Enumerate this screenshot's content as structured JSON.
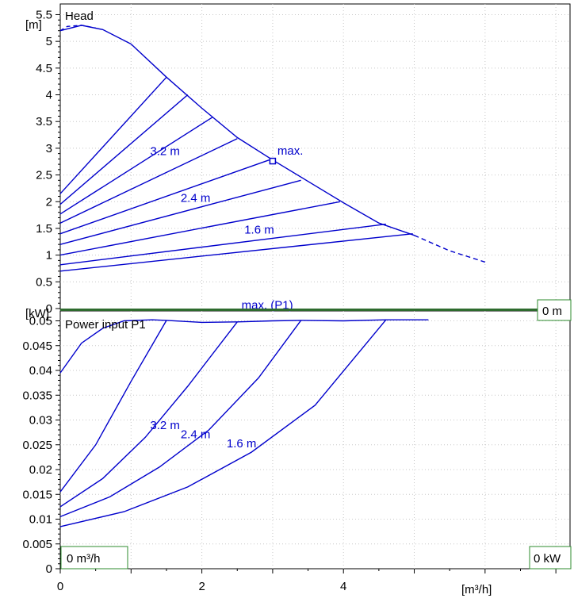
{
  "chart_data": [
    {
      "type": "line",
      "title": "Head",
      "y_unit": "[m]",
      "x_unit": "[m³/h]",
      "xlim": [
        0,
        7.2
      ],
      "ylim": [
        0,
        5.7
      ],
      "x_ticks": [
        "0",
        "2",
        "4"
      ],
      "y_ticks": [
        "0",
        "0.5",
        "1",
        "1.5",
        "2",
        "2.5",
        "3",
        "3.5",
        "4",
        "4.5",
        "5",
        "5.5"
      ],
      "grid": true,
      "line_color": "#0000cc",
      "max_curve": {
        "name": "max.",
        "solid": [
          [
            0,
            5.2
          ],
          [
            0.3,
            5.3
          ],
          [
            0.6,
            5.22
          ],
          [
            1.0,
            4.95
          ],
          [
            1.5,
            4.33
          ],
          [
            2.0,
            3.75
          ],
          [
            2.5,
            3.2
          ],
          [
            3.0,
            2.78
          ],
          [
            3.5,
            2.38
          ],
          [
            4.0,
            1.98
          ],
          [
            4.5,
            1.6
          ],
          [
            5.0,
            1.37
          ]
        ],
        "dashed_start": [
          [
            0,
            5.2
          ],
          [
            0.1,
            5.28
          ],
          [
            0.3,
            5.3
          ],
          [
            0.5,
            5.25
          ]
        ],
        "dashed_end": [
          [
            5.0,
            1.37
          ],
          [
            5.5,
            1.08
          ],
          [
            6.0,
            0.87
          ]
        ]
      },
      "max_point": {
        "x": 3.0,
        "y": 2.76,
        "label": "max."
      },
      "system_curves": [
        {
          "from": [
            0,
            2.15
          ],
          "to": [
            1.5,
            4.33
          ]
        },
        {
          "from": [
            0,
            1.95
          ],
          "to": [
            1.8,
            4.0
          ]
        },
        {
          "from": [
            0,
            1.77
          ],
          "to": [
            2.15,
            3.58
          ]
        },
        {
          "from": [
            0,
            1.6
          ],
          "to": [
            2.5,
            3.18
          ]
        },
        {
          "from": [
            0,
            1.4
          ],
          "to": [
            2.95,
            2.78
          ]
        },
        {
          "from": [
            0,
            1.2
          ],
          "to": [
            3.4,
            2.4
          ]
        },
        {
          "from": [
            0,
            1.0
          ],
          "to": [
            3.95,
            2.0
          ]
        },
        {
          "from": [
            0,
            0.82
          ],
          "to": [
            4.6,
            1.58
          ]
        },
        {
          "from": [
            0,
            0.7
          ],
          "to": [
            4.98,
            1.4
          ]
        }
      ],
      "annotations": [
        {
          "text": "3.2 m",
          "x": 1.27,
          "y": 2.87
        },
        {
          "text": "2.4 m",
          "x": 1.7,
          "y": 2.0
        },
        {
          "text": "1.6 m",
          "x": 2.6,
          "y": 1.4
        }
      ],
      "corner_label": "0 m"
    },
    {
      "type": "line",
      "title": "Power input P1",
      "y_unit": "[kW]",
      "x_unit": "[m³/h]",
      "xlim": [
        0,
        7.2
      ],
      "ylim": [
        0,
        0.052
      ],
      "x_ticks": [
        "0",
        "2",
        "4"
      ],
      "y_ticks": [
        "0",
        "0.005",
        "0.01",
        "0.015",
        "0.02",
        "0.025",
        "0.03",
        "0.035",
        "0.04",
        "0.045",
        "0.05"
      ],
      "grid": true,
      "line_color": "#0000cc",
      "max_curve": {
        "name": "max. (P1)",
        "points": [
          [
            0,
            0.0395
          ],
          [
            0.3,
            0.0455
          ],
          [
            0.6,
            0.0485
          ],
          [
            0.9,
            0.05
          ],
          [
            1.3,
            0.0502
          ],
          [
            1.5,
            0.0501
          ],
          [
            2.0,
            0.0497
          ],
          [
            2.5,
            0.0498
          ],
          [
            3.0,
            0.05
          ],
          [
            3.4,
            0.0501
          ],
          [
            4.0,
            0.05
          ],
          [
            4.6,
            0.0502
          ],
          [
            5.2,
            0.0502
          ]
        ]
      },
      "system_curves": [
        {
          "points": [
            [
              0,
              0.0155
            ],
            [
              0.5,
              0.025
            ],
            [
              1.0,
              0.0378
            ],
            [
              1.5,
              0.0501
            ]
          ]
        },
        {
          "points": [
            [
              0,
              0.0125
            ],
            [
              0.6,
              0.0182
            ],
            [
              1.2,
              0.0265
            ],
            [
              1.8,
              0.0368
            ],
            [
              2.5,
              0.0498
            ]
          ]
        },
        {
          "points": [
            [
              0,
              0.0105
            ],
            [
              0.7,
              0.0145
            ],
            [
              1.4,
              0.0205
            ],
            [
              2.1,
              0.028
            ],
            [
              2.8,
              0.0385
            ],
            [
              3.4,
              0.0501
            ]
          ]
        },
        {
          "points": [
            [
              0,
              0.0085
            ],
            [
              0.9,
              0.0115
            ],
            [
              1.8,
              0.0165
            ],
            [
              2.7,
              0.0235
            ],
            [
              3.6,
              0.033
            ],
            [
              4.6,
              0.0502
            ]
          ]
        }
      ],
      "annotations": [
        {
          "text": "3.2 m",
          "x": 1.27,
          "y": 0.0282
        },
        {
          "text": "2.4 m",
          "x": 1.7,
          "y": 0.0263
        },
        {
          "text": "1.6 m",
          "x": 2.35,
          "y": 0.0245
        },
        {
          "text": "max. (P1)",
          "x": 2.56,
          "y": 0.0524
        }
      ],
      "corner_label": "0 kW",
      "bottom_left_label": "0 m³/h"
    }
  ]
}
